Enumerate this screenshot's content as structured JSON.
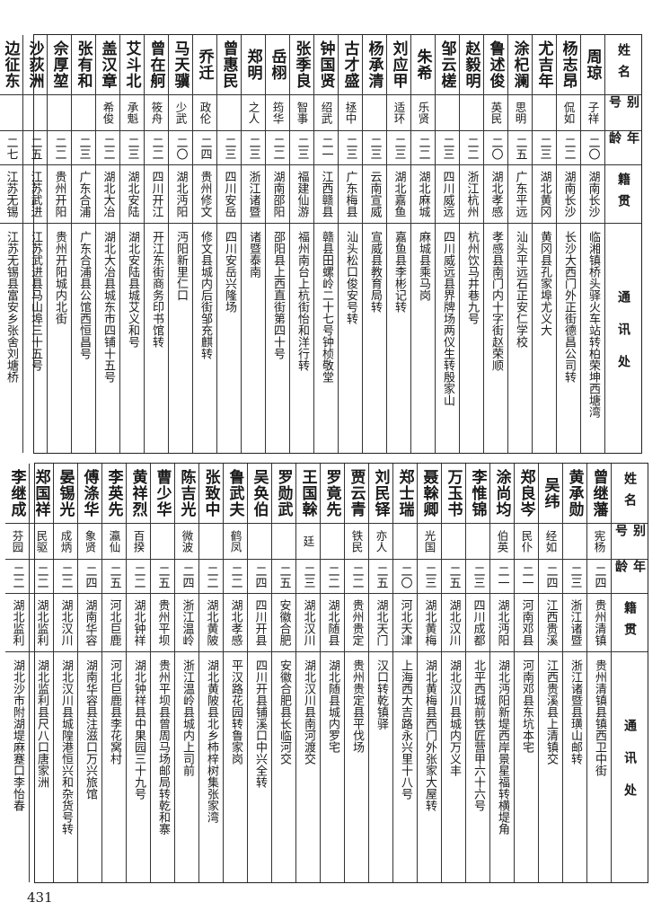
{
  "headers": {
    "name": "姓名",
    "alias": "别号",
    "age": "年龄",
    "native": "籍贯",
    "address": "通讯处"
  },
  "top_table": [
    {
      "name": "周琼",
      "alias": "子祥",
      "age": "二〇",
      "native": "湖南长沙",
      "address": "临湘镇桥头驿火车站转柏荣坤西塘湾"
    },
    {
      "name": "杨志昂",
      "alias": "侃如",
      "age": "二二",
      "native": "湖南长沙",
      "address": "长沙大西门外正街德昌公司转"
    },
    {
      "name": "尤吉年",
      "alias": "",
      "age": "二三",
      "native": "湖北黄冈",
      "address": "黄冈县孔家埠尤义大"
    },
    {
      "name": "涂杞澜",
      "alias": "思明",
      "age": "二五",
      "native": "广东平远",
      "address": "汕头平远石正安仁学校"
    },
    {
      "name": "鲁述俊",
      "alias": "英民",
      "age": "二〇",
      "native": "湖北孝感",
      "address": "孝感县南门内十字街赵荣顺"
    },
    {
      "name": "赵毅明",
      "alias": "",
      "age": "二二",
      "native": "浙江杭州",
      "address": "杭州饮马井巷九号"
    },
    {
      "name": "邹云槎",
      "alias": "",
      "age": "二三",
      "native": "四川威远",
      "address": "四川威远县界牌场两仪生转殷家山"
    },
    {
      "name": "朱希",
      "alias": "乐贤",
      "age": "二二",
      "native": "湖北麻城",
      "address": "麻城县乘马岗"
    },
    {
      "name": "刘应甲",
      "alias": "适环",
      "age": "二三",
      "native": "湖北嘉鱼",
      "address": "嘉鱼县李彬记转"
    },
    {
      "name": "杨承清",
      "alias": "",
      "age": "二三",
      "native": "云南宣威",
      "address": "宣威县教育局转"
    },
    {
      "name": "古才盛",
      "alias": "拯中",
      "age": "二三",
      "native": "广东梅县",
      "address": "汕头松口俊安号转"
    },
    {
      "name": "钟国贤",
      "alias": "绍武",
      "age": "二一",
      "native": "江西赣县",
      "address": "赣县田螺岭二十七号钟桢敬堂"
    },
    {
      "name": "张季良",
      "alias": "智事",
      "age": "二三",
      "native": "福建仙游",
      "address": "福州南台上杭街怡和洋行转"
    },
    {
      "name": "岳栩",
      "alias": "筠华",
      "age": "二二",
      "native": "湖南邵阳",
      "address": "邵阳县上西直街第四十号"
    },
    {
      "name": "郑明",
      "alias": "之人",
      "age": "二三",
      "native": "浙江诸暨",
      "address": "诸暨泰南"
    },
    {
      "name": "曾惠民",
      "alias": "",
      "age": "二三",
      "native": "四川安岳",
      "address": "四川安岳兴隆场"
    },
    {
      "name": "乔迁",
      "alias": "政伦",
      "age": "二四",
      "native": "贵州修文",
      "address": "修文县城内后街邹充麒转"
    },
    {
      "name": "马天骥",
      "alias": "少武",
      "age": "二〇",
      "native": "湖北沔阳",
      "address": "沔阳新里仁口"
    },
    {
      "name": "曾在舸",
      "alias": "筱舟",
      "age": "二二",
      "native": "四川开江",
      "address": "开江东街商务印书馆转"
    },
    {
      "name": "艾斗北",
      "alias": "承魁",
      "age": "二三",
      "native": "湖北安陆",
      "address": "湖北安陆县城艾义和号"
    },
    {
      "name": "盖汉章",
      "alias": "希俊",
      "age": "二二",
      "native": "湖北大冶",
      "address": "湖北大冶县城东市四铺十五号"
    },
    {
      "name": "张有和",
      "alias": "",
      "age": "二三",
      "native": "广东合浦",
      "address": "广东合浦县公馆西恒昌号"
    },
    {
      "name": "佘厚堃",
      "alias": "",
      "age": "二二",
      "native": "贵州开阳",
      "address": "贵州开阳城内北街"
    },
    {
      "name": "沙荻洲",
      "alias": "",
      "age": "二五",
      "native": "江苏武进",
      "address": "江苏武进县马山埠三十五号"
    },
    {
      "name": "边征东",
      "alias": "",
      "age": "二七",
      "native": "江苏无锡",
      "address": "江苏无锡县富安乡张舍刘塘桥"
    }
  ],
  "bottom_table": [
    {
      "name": "曾继藩",
      "alias": "宪杨",
      "age": "二四",
      "native": "贵州清镇",
      "address": "贵州清镇县镇西卫中街"
    },
    {
      "name": "黄承勋",
      "alias": "",
      "age": "二三",
      "native": "浙江诸暨",
      "address": "浙江诸暨县璜山邮转"
    },
    {
      "name": "吴纬",
      "alias": "经如",
      "age": "二四",
      "native": "江西贵溪",
      "address": "江西贵溪县上清镇交"
    },
    {
      "name": "郑良岑",
      "alias": "民仆",
      "age": "二一",
      "native": "河南邓县",
      "address": "河南邓县东坑本宅"
    },
    {
      "name": "涂尚均",
      "alias": "伯英",
      "age": "二一",
      "native": "湖北沔阳",
      "address": "湖北沔阳新堤西岸景星福转横堤角"
    },
    {
      "name": "李惟锦",
      "alias": "",
      "age": "二三",
      "native": "四川成都",
      "address": "北平西城前铁匠营甲六十六号"
    },
    {
      "name": "万玉书",
      "alias": "",
      "age": "二五",
      "native": "湖北汉川",
      "address": "湖北汉川县城内万义丰"
    },
    {
      "name": "聂榦卿",
      "alias": "光国",
      "age": "二三",
      "native": "湖北黄梅",
      "address": "湖北黄梅县西门外张家大屋转"
    },
    {
      "name": "郑士瑞",
      "alias": "",
      "age": "二〇",
      "native": "河北天津",
      "address": "上海西大吉路永兴里十八号"
    },
    {
      "name": "刘民铎",
      "alias": "亦人",
      "age": "二五",
      "native": "湖北天门",
      "address": "汉口转乾镇驿"
    },
    {
      "name": "贾云青",
      "alias": "铁民",
      "age": "二二",
      "native": "贵州贵定",
      "address": "贵州贵定县平伐场"
    },
    {
      "name": "罗竟先",
      "alias": "",
      "age": "二二",
      "native": "湖北随县",
      "address": "湖北随县城内罗宅"
    },
    {
      "name": "王国榦",
      "alias": "廷",
      "age": "二三",
      "native": "湖北汉川",
      "address": "湖北汉川县南河渡交"
    },
    {
      "name": "罗勋武",
      "alias": "",
      "age": "二五",
      "native": "安徽合肥",
      "address": "安徽合肥县长临河交"
    },
    {
      "name": "吴奂伯",
      "alias": "",
      "age": "二四",
      "native": "四川开县",
      "address": "四川开县铺溪口中兴全转"
    },
    {
      "name": "鲁武夫",
      "alias": "鹤凤",
      "age": "二二",
      "native": "湖北孝感",
      "address": "平汉路花园转鲁家岗"
    },
    {
      "name": "张致中",
      "alias": "",
      "age": "二二",
      "native": "湖北黄陂",
      "address": "湖北黄陂县北乡柿梓树集张家湾"
    },
    {
      "name": "陈吉光",
      "alias": "微波",
      "age": "二四",
      "native": "浙江温岭",
      "address": "浙江温岭县城内上司前"
    },
    {
      "name": "曹少华",
      "alias": "",
      "age": "二五",
      "native": "贵州平坝",
      "address": "贵州平坝县曾周马场邮局转乾和寨"
    },
    {
      "name": "黄祥烈",
      "alias": "百揆",
      "age": "二二",
      "native": "湖北钟祥",
      "address": "湖北钟祥县中果园三十九号"
    },
    {
      "name": "李英先",
      "alias": "瀛仙",
      "age": "二五",
      "native": "河北巨鹿",
      "address": "河北巨鹿县李花窝村"
    },
    {
      "name": "傅涤华",
      "alias": "象贤",
      "age": "二四",
      "native": "湖南华容",
      "address": "湖南华容县注滋口万兴旅馆"
    },
    {
      "name": "晏锡光",
      "alias": "成炳",
      "age": "二二",
      "native": "湖北汉川",
      "address": "湖北汉川县城隍港恒兴和杂货号转"
    },
    {
      "name": "郑国祥",
      "alias": "民驱",
      "age": "二二",
      "native": "湖北监利",
      "address": "湖北监利县尺八口唐家洲"
    },
    {
      "name": "李继成",
      "alias": "芬园",
      "age": "二二",
      "native": "湖北监利",
      "address": "湖北沙市附湖堤麻蹇口李怡春"
    }
  ],
  "page_number": "431"
}
